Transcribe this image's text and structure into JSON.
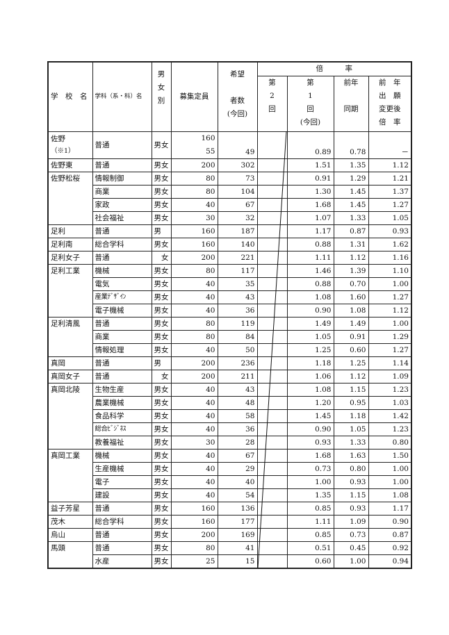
{
  "header": {
    "school": "学　校　名",
    "dept": "学科（系・科）名",
    "sex": [
      "男",
      "女",
      "別"
    ],
    "quota": "募集定員",
    "applicants": [
      "希望",
      "",
      "者数",
      "(今回)"
    ],
    "ratio_group": "倍　　　率",
    "round2": [
      "第",
      "2",
      "回"
    ],
    "round1": [
      "第",
      "1",
      "回",
      "(今回)"
    ],
    "prev_year": [
      "前年",
      "",
      "同期"
    ],
    "prev_after": [
      "前　年",
      "出　願",
      "変更後",
      "倍　率"
    ]
  },
  "first_row": {
    "school": "佐野",
    "note": "（※1）",
    "dept": "普通",
    "sex": "男女",
    "quota": [
      "160",
      "55"
    ],
    "applicants": "49",
    "round2": "",
    "round1": "0.89",
    "prev_year": "0.78",
    "prev_after": "－"
  },
  "schools": [
    {
      "name": "佐野東",
      "rows": [
        [
          "普通",
          "男女",
          "200",
          "302",
          "1.51",
          "1.35",
          "1.12"
        ]
      ]
    },
    {
      "name": "佐野松桜",
      "rows": [
        [
          "情報制御",
          "男女",
          "80",
          "73",
          "0.91",
          "1.29",
          "1.21"
        ],
        [
          "商業",
          "男女",
          "80",
          "104",
          "1.30",
          "1.45",
          "1.37"
        ],
        [
          "家政",
          "男女",
          "40",
          "67",
          "1.68",
          "1.45",
          "1.27"
        ],
        [
          "社会福祉",
          "男女",
          "30",
          "32",
          "1.07",
          "1.33",
          "1.05"
        ]
      ]
    },
    {
      "name": "足利",
      "rows": [
        [
          "普通",
          "男",
          "160",
          "187",
          "1.17",
          "0.87",
          "0.93"
        ]
      ]
    },
    {
      "name": "足利南",
      "rows": [
        [
          "総合学科",
          "男女",
          "160",
          "140",
          "0.88",
          "1.31",
          "1.62"
        ]
      ]
    },
    {
      "name": "足利女子",
      "rows": [
        [
          "普通",
          "女",
          "200",
          "221",
          "1.11",
          "1.12",
          "1.16"
        ]
      ]
    },
    {
      "name": "足利工業",
      "rows": [
        [
          "機械",
          "男女",
          "80",
          "117",
          "1.46",
          "1.39",
          "1.10"
        ],
        [
          "電気",
          "男女",
          "40",
          "35",
          "0.88",
          "0.70",
          "1.00"
        ],
        [
          "産業ﾃﾞｻﾞｲﾝ",
          "男女",
          "40",
          "43",
          "1.08",
          "1.60",
          "1.27"
        ],
        [
          "電子機械",
          "男女",
          "40",
          "36",
          "0.90",
          "1.08",
          "1.12"
        ]
      ]
    },
    {
      "name": "足利清風",
      "rows": [
        [
          "普通",
          "男女",
          "80",
          "119",
          "1.49",
          "1.49",
          "1.00"
        ],
        [
          "商業",
          "男女",
          "80",
          "84",
          "1.05",
          "0.91",
          "1.29"
        ],
        [
          "情報処理",
          "男女",
          "40",
          "50",
          "1.25",
          "0.60",
          "1.27"
        ]
      ]
    },
    {
      "name": "真岡",
      "rows": [
        [
          "普通",
          "男",
          "200",
          "236",
          "1.18",
          "1.25",
          "1.14"
        ]
      ]
    },
    {
      "name": "真岡女子",
      "rows": [
        [
          "普通",
          "女",
          "200",
          "211",
          "1.06",
          "1.12",
          "1.09"
        ]
      ]
    },
    {
      "name": "真岡北陵",
      "rows": [
        [
          "生物生産",
          "男女",
          "40",
          "43",
          "1.08",
          "1.15",
          "1.23"
        ],
        [
          "農業機械",
          "男女",
          "40",
          "48",
          "1.20",
          "0.95",
          "1.03"
        ],
        [
          "食品科学",
          "男女",
          "40",
          "58",
          "1.45",
          "1.18",
          "1.42"
        ],
        [
          "総合ﾋﾞｼﾞﾈｽ",
          "男女",
          "40",
          "36",
          "0.90",
          "1.05",
          "1.23"
        ],
        [
          "教養福祉",
          "男女",
          "30",
          "28",
          "0.93",
          "1.33",
          "0.80"
        ]
      ]
    },
    {
      "name": "真岡工業",
      "rows": [
        [
          "機械",
          "男女",
          "40",
          "67",
          "1.68",
          "1.63",
          "1.50"
        ],
        [
          "生産機械",
          "男女",
          "40",
          "29",
          "0.73",
          "0.80",
          "1.00"
        ],
        [
          "電子",
          "男女",
          "40",
          "40",
          "1.00",
          "0.93",
          "1.00"
        ],
        [
          "建設",
          "男女",
          "40",
          "54",
          "1.35",
          "1.15",
          "1.08"
        ]
      ]
    },
    {
      "name": "益子芳星",
      "rows": [
        [
          "普通",
          "男女",
          "160",
          "136",
          "0.85",
          "0.93",
          "1.17"
        ]
      ]
    },
    {
      "name": "茂木",
      "rows": [
        [
          "総合学科",
          "男女",
          "160",
          "177",
          "1.11",
          "1.09",
          "0.90"
        ]
      ]
    },
    {
      "name": "烏山",
      "rows": [
        [
          "普通",
          "男女",
          "200",
          "169",
          "0.85",
          "0.73",
          "0.87"
        ]
      ]
    },
    {
      "name": "馬頭",
      "rows": [
        [
          "普通",
          "男女",
          "80",
          "41",
          "0.51",
          "0.45",
          "0.92"
        ],
        [
          "水産",
          "男女",
          "25",
          "15",
          "0.60",
          "1.00",
          "0.94"
        ]
      ]
    }
  ]
}
